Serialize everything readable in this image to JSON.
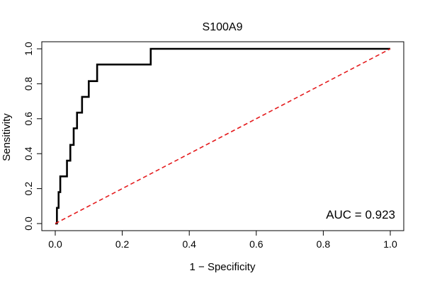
{
  "chart_data": {
    "type": "line",
    "title": "S100A9",
    "xlabel": "1 − Specificity",
    "ylabel": "Sensitivity",
    "xlim": [
      0,
      1
    ],
    "ylim": [
      0,
      1
    ],
    "x_ticks": [
      "0.0",
      "0.2",
      "0.4",
      "0.6",
      "0.8",
      "1.0"
    ],
    "y_ticks": [
      "0.0",
      "0.2",
      "0.4",
      "0.6",
      "0.8",
      "1.0"
    ],
    "annotation": "AUC = 0.923",
    "series": [
      {
        "name": "ROC",
        "color": "#000000",
        "style": "solid",
        "x": [
          0.0,
          0.005,
          0.005,
          0.01,
          0.01,
          0.015,
          0.015,
          0.035,
          0.035,
          0.045,
          0.045,
          0.055,
          0.055,
          0.065,
          0.065,
          0.08,
          0.08,
          0.1,
          0.1,
          0.115,
          0.115,
          0.125,
          0.125,
          0.21,
          0.285,
          0.285,
          1.0
        ],
        "y": [
          0.0,
          0.0,
          0.09,
          0.09,
          0.18,
          0.18,
          0.27,
          0.27,
          0.36,
          0.36,
          0.45,
          0.45,
          0.545,
          0.545,
          0.635,
          0.635,
          0.725,
          0.725,
          0.815,
          0.815,
          0.815,
          0.815,
          0.91,
          0.91,
          0.91,
          1.0,
          1.0
        ]
      },
      {
        "name": "reference",
        "color": "#e41a1c",
        "style": "dashed",
        "x": [
          0.0,
          1.0
        ],
        "y": [
          0.0,
          1.0
        ]
      }
    ]
  }
}
